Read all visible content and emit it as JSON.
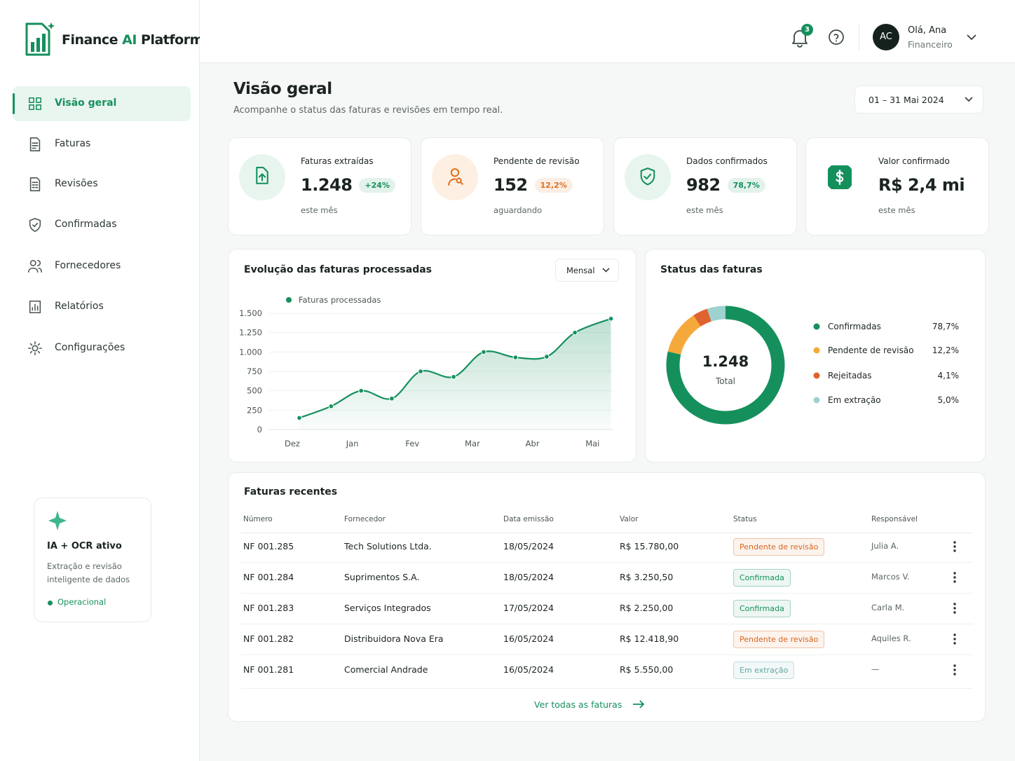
{
  "brand": {
    "pre": "Finance",
    "accent": "AI",
    "post": "Platform"
  },
  "nav": {
    "items": [
      "Visão geral",
      "Faturas",
      "Revisões",
      "Confirmadas",
      "Fornecedores",
      "Relatórios",
      "Configurações"
    ],
    "active": 0
  },
  "ai_card": {
    "title": "IA + OCR ativo",
    "text": "Extração e revisão inteligente de dados",
    "status": "Operacional"
  },
  "header": {
    "notifications": "3",
    "initials": "AC",
    "greeting": "Olá, Ana",
    "role": "Financeiro"
  },
  "page": {
    "title": "Visão geral",
    "subtitle": "Acompanhe o status das faturas e revisões em tempo real.",
    "date_range": "01 – 31 Mai 2024"
  },
  "kpis": [
    {
      "label": "Faturas extraídas",
      "value": "1.248",
      "badge": "+24%",
      "note": "este mês",
      "color": "#15905d"
    },
    {
      "label": "Pendente de revisão",
      "value": "152",
      "badge": "12,2%",
      "note": "aguardando",
      "color": "#e0701f"
    },
    {
      "label": "Dados confirmados",
      "value": "982",
      "badge": "78,7%",
      "note": "este mês",
      "color": "#15905d"
    },
    {
      "label": "Valor confirmado",
      "value": "R$ 2,4 mi",
      "note": "este mês",
      "color": "#15905d"
    }
  ],
  "line_chart": {
    "type": "line",
    "title": "Evolução das faturas processadas",
    "period": "Mensal",
    "series": [
      {
        "name": "Faturas processadas",
        "color": "#15905d",
        "x": [
          0,
          0.53,
          1.03,
          1.54,
          2.02,
          2.57,
          3.07,
          3.6,
          4.12,
          4.59,
          5.19
        ],
        "values": [
          150,
          300,
          500,
          400,
          750,
          680,
          1000,
          930,
          940,
          1250,
          1430
        ]
      }
    ],
    "xlim": [
      -0.14,
      5.23
    ],
    "xticks": [
      {
        "value": 0,
        "label": "Dez"
      },
      {
        "value": 1,
        "label": "Jan"
      },
      {
        "value": 2,
        "label": "Fev"
      },
      {
        "value": 3,
        "label": "Mar"
      },
      {
        "value": 4,
        "label": "Abr"
      },
      {
        "value": 5,
        "label": "Mai"
      }
    ],
    "ylim": [
      0,
      1500
    ],
    "yticks": [
      0,
      250,
      500,
      750,
      {
        "value": 1000,
        "label": "1.000"
      },
      {
        "value": 1250,
        "label": "1.250"
      },
      {
        "value": 1500,
        "label": "1.500"
      }
    ],
    "grid": true
  },
  "donut": {
    "type": "pie",
    "title": "Status das faturas",
    "center_value": "1.248",
    "center_label": "Total",
    "categories": [
      "Confirmadas",
      "Pendente de revisão",
      "Rejeitadas",
      "Em extração"
    ],
    "values": [
      78.7,
      12.2,
      4.1,
      5.0
    ],
    "value_labels": [
      "78,7%",
      "12,2%",
      "4,1%",
      "5,0%"
    ],
    "colors": [
      "#15905d",
      "#f5a93b",
      "#e0622f",
      "#9dd2cf"
    ]
  },
  "table": {
    "title": "Faturas recentes",
    "columns": [
      "Número",
      "Fornecedor",
      "Data emissão",
      "Valor",
      "Status",
      "Responsável"
    ],
    "rows": [
      [
        "NF 001.285",
        "Tech Solutions Ltda.",
        "18/05/2024",
        "R$ 15.780,00",
        "Pendente de revisão",
        "Julia A."
      ],
      [
        "NF 001.284",
        "Suprimentos S.A.",
        "18/05/2024",
        "R$ 3.250,50",
        "Confirmada",
        "Marcos V."
      ],
      [
        "NF 001.283",
        "Serviços Integrados",
        "17/05/2024",
        "R$ 2.250,00",
        "Confirmada",
        "Carla M."
      ],
      [
        "NF 001.282",
        "Distribuidora Nova Era",
        "16/05/2024",
        "R$ 12.418,90",
        "Pendente de revisão",
        "Aquiles R."
      ],
      [
        "NF 001.281",
        "Comercial Andrade",
        "16/05/2024",
        "R$ 5.550,00",
        "Em extração",
        "—"
      ]
    ],
    "status_colors": [
      "#d9661f",
      "#15905d",
      "#15905d",
      "#d9661f",
      "#5fa6a0"
    ],
    "footer_link": "Ver todas as faturas"
  }
}
